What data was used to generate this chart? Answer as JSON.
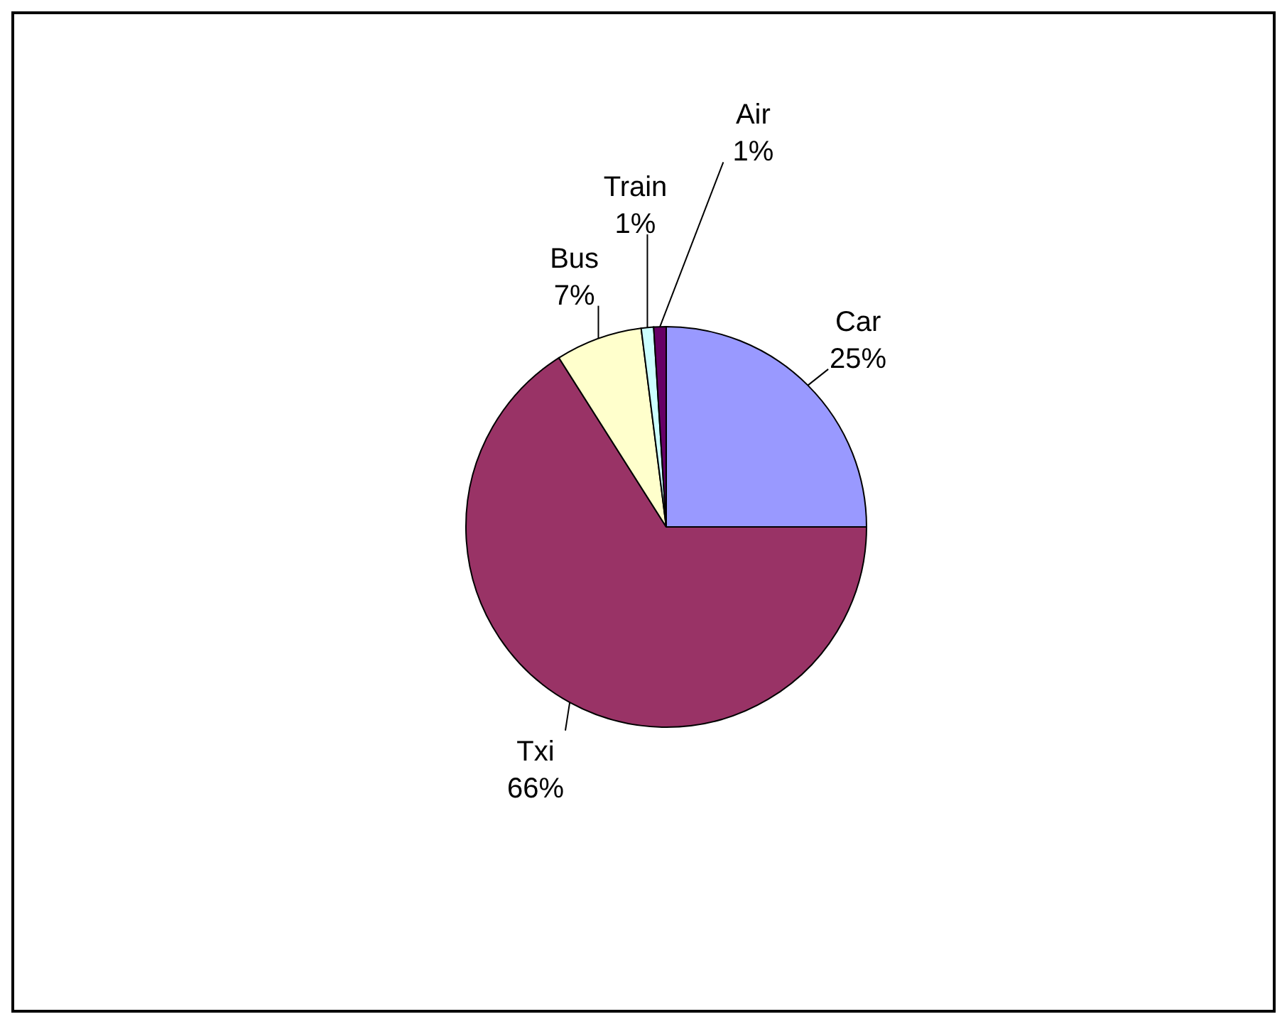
{
  "chart_data": {
    "type": "pie",
    "categories": [
      "Car",
      "Txi",
      "Bus",
      "Train",
      "Air"
    ],
    "values": [
      25,
      66,
      7,
      1,
      1
    ],
    "colors": [
      "#9999ff",
      "#993366",
      "#ffffcc",
      "#ccffff",
      "#660066"
    ],
    "value_labels": [
      "25%",
      "66%",
      "7%",
      "1%",
      "1%"
    ]
  }
}
